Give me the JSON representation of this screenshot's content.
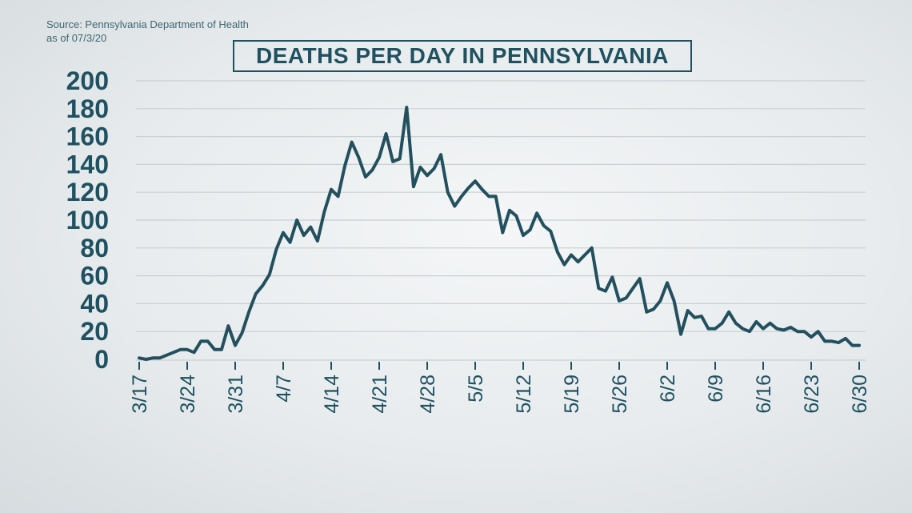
{
  "source": {
    "line1": "Source: Pennsylvania Department of Health",
    "line2": "as of 07/3/20"
  },
  "colors": {
    "line": "#23505e",
    "grid": "#c9d0d4",
    "text": "#1f5160"
  },
  "chart_data": {
    "type": "line",
    "title": "DEATHS PER DAY IN PENNSYLVANIA",
    "xlabel": "",
    "ylabel": "",
    "ylim": [
      0,
      200
    ],
    "yticks": [
      0,
      20,
      40,
      60,
      80,
      100,
      120,
      140,
      160,
      180,
      200
    ],
    "xtick_labels": [
      "3/17",
      "3/24",
      "3/31",
      "4/7",
      "4/14",
      "4/21",
      "4/28",
      "5/5",
      "5/12",
      "5/19",
      "5/26",
      "6/2",
      "6/9",
      "6/16",
      "6/23",
      "6/30"
    ],
    "grid": true,
    "start_date": "3/17",
    "series": [
      {
        "values": [
          1,
          0,
          1,
          1,
          3,
          5,
          7,
          7,
          5,
          13,
          13,
          7,
          7,
          24,
          10,
          19,
          34,
          47,
          53,
          61,
          79,
          91,
          84,
          100,
          89,
          95,
          85,
          106,
          122,
          117,
          139,
          156,
          145,
          131,
          136,
          145,
          162,
          142,
          144,
          181,
          124,
          138,
          132,
          137,
          147,
          120,
          110,
          117,
          123,
          128,
          122,
          117,
          117,
          91,
          107,
          103,
          89,
          93,
          105,
          96,
          92,
          77,
          68,
          75,
          70,
          75,
          80,
          51,
          49,
          59,
          42,
          44,
          51,
          58,
          34,
          36,
          42,
          55,
          42,
          18,
          35,
          30,
          31,
          22,
          22,
          26,
          34,
          26,
          22,
          20,
          27,
          22,
          26,
          22,
          21,
          23,
          20,
          20,
          16,
          20,
          13,
          13,
          12,
          15,
          10,
          10
        ]
      }
    ]
  }
}
